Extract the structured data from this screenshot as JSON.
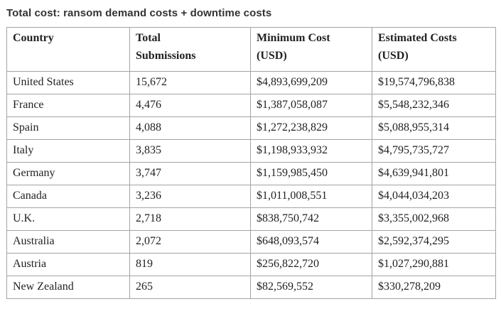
{
  "page": {
    "title": "Total cost: ransom demand costs + downtime costs"
  },
  "colors": {
    "background": "#ffffff",
    "title_text": "#333333",
    "table_text": "#222222",
    "table_border": "#a3a3a3"
  },
  "table": {
    "header_lines": [
      [
        "Country",
        ""
      ],
      [
        "Total",
        "Submissions"
      ],
      [
        "Minimum Cost",
        "(USD)"
      ],
      [
        "Estimated Costs",
        "(USD)"
      ]
    ],
    "columns": [
      "Country",
      "Total Submissions",
      "Minimum Cost (USD)",
      "Estimated Costs (USD)"
    ],
    "rows": [
      {
        "country": "United States",
        "submissions": "15,672",
        "min_cost": "$4,893,699,209",
        "est_cost": "$19,574,796,838"
      },
      {
        "country": "France",
        "submissions": "4,476",
        "min_cost": "$1,387,058,087",
        "est_cost": "$5,548,232,346"
      },
      {
        "country": "Spain",
        "submissions": "4,088",
        "min_cost": "$1,272,238,829",
        "est_cost": "$5,088,955,314"
      },
      {
        "country": "Italy",
        "submissions": "3,835",
        "min_cost": "$1,198,933,932",
        "est_cost": "$4,795,735,727"
      },
      {
        "country": "Germany",
        "submissions": "3,747",
        "min_cost": "$1,159,985,450",
        "est_cost": "$4,639,941,801"
      },
      {
        "country": "Canada",
        "submissions": "3,236",
        "min_cost": "$1,011,008,551",
        "est_cost": "$4,044,034,203"
      },
      {
        "country": "U.K.",
        "submissions": "2,718",
        "min_cost": "$838,750,742",
        "est_cost": "$3,355,002,968"
      },
      {
        "country": "Australia",
        "submissions": "2,072",
        "min_cost": "$648,093,574",
        "est_cost": "$2,592,374,295"
      },
      {
        "country": "Austria",
        "submissions": "819",
        "min_cost": "$256,822,720",
        "est_cost": "$1,027,290,881"
      },
      {
        "country": "New Zealand",
        "submissions": "265",
        "min_cost": "$82,569,552",
        "est_cost": "$330,278,209"
      }
    ]
  },
  "chart_data": {
    "type": "table",
    "title": "Total cost: ransom demand costs + downtime costs",
    "columns": [
      "Country",
      "Total Submissions",
      "Minimum Cost (USD)",
      "Estimated Costs (USD)"
    ],
    "rows": [
      [
        "United States",
        15672,
        4893699209,
        19574796838
      ],
      [
        "France",
        4476,
        1387058087,
        5548232346
      ],
      [
        "Spain",
        4088,
        1272238829,
        5088955314
      ],
      [
        "Italy",
        3835,
        1198933932,
        4795735727
      ],
      [
        "Germany",
        3747,
        1159985450,
        4639941801
      ],
      [
        "Canada",
        3236,
        1011008551,
        4044034203
      ],
      [
        "U.K.",
        2718,
        838750742,
        3355002968
      ],
      [
        "Australia",
        2072,
        648093574,
        2592374295
      ],
      [
        "Austria",
        819,
        256822720,
        1027290881
      ],
      [
        "New Zealand",
        265,
        82569552,
        330278209
      ]
    ]
  }
}
